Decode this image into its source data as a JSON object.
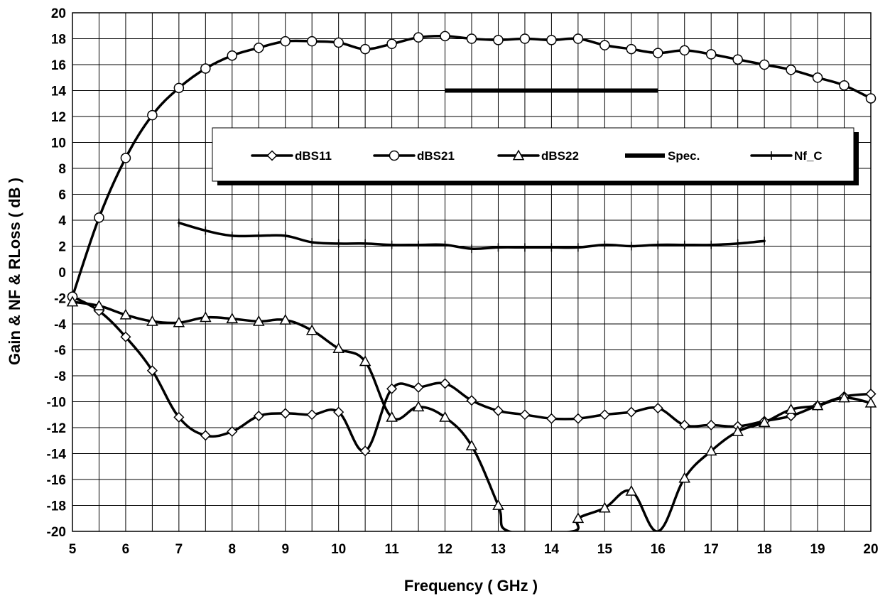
{
  "chart_data": {
    "type": "line",
    "title": "",
    "xlabel": "Frequency ( GHz )",
    "ylabel": "Gain & NF & RLoss ( dB )",
    "xlim": [
      5,
      20
    ],
    "ylim": [
      -20,
      20
    ],
    "x_ticks": [
      5,
      6,
      7,
      8,
      9,
      10,
      11,
      12,
      13,
      14,
      15,
      16,
      17,
      18,
      19,
      20
    ],
    "y_ticks": [
      20,
      18,
      16,
      14,
      12,
      10,
      8,
      6,
      4,
      2,
      0,
      -2,
      -4,
      -6,
      -8,
      -10,
      -12,
      -14,
      -16,
      -18,
      -20
    ],
    "x_grid_step": 0.5,
    "grid": true,
    "legend_position": "top-center",
    "series": [
      {
        "name": "dBS11",
        "marker": "diamond",
        "points": [
          [
            5,
            -1.9
          ],
          [
            5.5,
            -3.0
          ],
          [
            6,
            -5.0
          ],
          [
            6.5,
            -7.6
          ],
          [
            7,
            -11.2
          ],
          [
            7.5,
            -12.6
          ],
          [
            8,
            -12.3
          ],
          [
            8.5,
            -11.1
          ],
          [
            9,
            -10.9
          ],
          [
            9.5,
            -11.0
          ],
          [
            10,
            -10.8
          ],
          [
            10.5,
            -13.8
          ],
          [
            11,
            -9.0
          ],
          [
            11.5,
            -8.9
          ],
          [
            12,
            -8.6
          ],
          [
            12.5,
            -9.9
          ],
          [
            13,
            -10.7
          ],
          [
            13.5,
            -11.0
          ],
          [
            14,
            -11.3
          ],
          [
            14.5,
            -11.3
          ],
          [
            15,
            -11.0
          ],
          [
            15.5,
            -10.8
          ],
          [
            16,
            -10.5
          ],
          [
            16.5,
            -11.8
          ],
          [
            17,
            -11.8
          ],
          [
            17.5,
            -11.9
          ],
          [
            18,
            -11.5
          ],
          [
            18.5,
            -11.1
          ],
          [
            19,
            -10.3
          ],
          [
            19.5,
            -9.6
          ],
          [
            20,
            -9.4
          ]
        ]
      },
      {
        "name": "dBS21",
        "marker": "circle",
        "points": [
          [
            5,
            -1.9
          ],
          [
            5.5,
            4.2
          ],
          [
            6,
            8.8
          ],
          [
            6.5,
            12.1
          ],
          [
            7,
            14.2
          ],
          [
            7.5,
            15.7
          ],
          [
            8,
            16.7
          ],
          [
            8.5,
            17.3
          ],
          [
            9,
            17.8
          ],
          [
            9.5,
            17.8
          ],
          [
            10,
            17.7
          ],
          [
            10.5,
            17.2
          ],
          [
            11,
            17.6
          ],
          [
            11.5,
            18.1
          ],
          [
            12,
            18.2
          ],
          [
            12.5,
            18.0
          ],
          [
            13,
            17.9
          ],
          [
            13.5,
            18.0
          ],
          [
            14,
            17.9
          ],
          [
            14.5,
            18.0
          ],
          [
            15,
            17.5
          ],
          [
            15.5,
            17.2
          ],
          [
            16,
            16.9
          ],
          [
            16.5,
            17.1
          ],
          [
            17,
            16.8
          ],
          [
            17.5,
            16.4
          ],
          [
            18,
            16.0
          ],
          [
            18.5,
            15.6
          ],
          [
            19,
            15.0
          ],
          [
            19.5,
            14.4
          ],
          [
            20,
            13.4
          ]
        ]
      },
      {
        "name": "dBS22",
        "marker": "triangle",
        "points": [
          [
            5,
            -2.3
          ],
          [
            5.5,
            -2.6
          ],
          [
            6,
            -3.3
          ],
          [
            6.5,
            -3.8
          ],
          [
            7,
            -3.9
          ],
          [
            7.5,
            -3.5
          ],
          [
            8,
            -3.6
          ],
          [
            8.5,
            -3.8
          ],
          [
            9,
            -3.7
          ],
          [
            9.5,
            -4.5
          ],
          [
            10,
            -5.9
          ],
          [
            10.5,
            -6.9
          ],
          [
            11,
            -11.2
          ],
          [
            11.5,
            -10.4
          ],
          [
            12,
            -11.2
          ],
          [
            12.5,
            -13.4
          ],
          [
            13,
            -18.0
          ],
          [
            13.2,
            -20.0
          ],
          [
            14.4,
            -20.0
          ],
          [
            14.5,
            -19.0
          ],
          [
            15,
            -18.2
          ],
          [
            15.5,
            -16.9
          ],
          [
            16,
            -20.0
          ],
          [
            16.5,
            -15.9
          ],
          [
            17,
            -13.8
          ],
          [
            17.5,
            -12.3
          ],
          [
            18,
            -11.6
          ],
          [
            18.5,
            -10.6
          ],
          [
            19,
            -10.3
          ],
          [
            19.5,
            -9.7
          ],
          [
            20,
            -10.1
          ]
        ],
        "marker_skip_x": [
          13.2,
          14.4,
          16
        ]
      },
      {
        "name": "Spec.",
        "marker": "none",
        "points": [
          [
            12,
            14
          ],
          [
            16,
            14
          ]
        ]
      },
      {
        "name": "Nf_C",
        "marker": "plus",
        "points": [
          [
            7,
            3.8
          ],
          [
            7.5,
            3.2
          ],
          [
            8,
            2.8
          ],
          [
            8.5,
            2.8
          ],
          [
            9,
            2.8
          ],
          [
            9.5,
            2.3
          ],
          [
            10,
            2.2
          ],
          [
            10.5,
            2.2
          ],
          [
            11,
            2.1
          ],
          [
            11.5,
            2.1
          ],
          [
            12,
            2.1
          ],
          [
            12.5,
            1.8
          ],
          [
            13,
            1.9
          ],
          [
            13.5,
            1.9
          ],
          [
            14,
            1.9
          ],
          [
            14.5,
            1.9
          ],
          [
            15,
            2.1
          ],
          [
            15.5,
            2.0
          ],
          [
            16,
            2.1
          ],
          [
            16.5,
            2.1
          ],
          [
            17,
            2.1
          ],
          [
            17.5,
            2.2
          ],
          [
            18,
            2.4
          ]
        ]
      }
    ]
  }
}
